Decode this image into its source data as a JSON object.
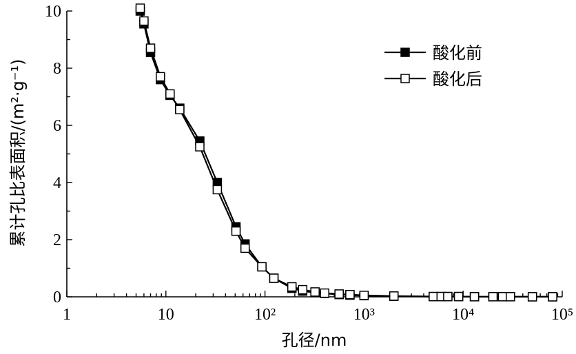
{
  "chart_data": {
    "type": "line",
    "xlabel": "孔径/nm",
    "ylabel": "累计孔比表面积/(m²·g⁻¹)",
    "xscale": "log",
    "xlim": [
      1,
      100000
    ],
    "ylim": [
      0,
      10
    ],
    "x_tick_labels": [
      "1",
      "10",
      "10²",
      "10³",
      "10⁴",
      "10⁵"
    ],
    "y_tick_labels": [
      "0",
      "2",
      "4",
      "6",
      "8",
      "10"
    ],
    "legend_position": "top-right",
    "series": [
      {
        "name": "酸化前",
        "marker": "filled-square",
        "color": "#000000",
        "x": [
          5.5,
          6.0,
          7.0,
          8.8,
          11.0,
          13.8,
          22.0,
          33.0,
          51.0,
          63.0,
          93.0,
          123.0,
          187.0,
          240.0,
          320.0,
          400.0,
          560.0,
          720.0,
          1000.0,
          2000.0,
          5000.0,
          6000.0,
          7000.0,
          9000.0,
          13000.0,
          20000.0,
          25000.0,
          30000.0,
          50000.0,
          80000.0
        ],
        "y": [
          10.0,
          9.55,
          8.55,
          7.6,
          7.05,
          6.6,
          5.45,
          4.0,
          2.45,
          1.85,
          1.05,
          0.65,
          0.3,
          0.2,
          0.15,
          0.12,
          0.08,
          0.06,
          0.04,
          0.02,
          0.01,
          0.01,
          0.01,
          0.01,
          0.005,
          0.005,
          0.005,
          0.005,
          0.003,
          0.002
        ]
      },
      {
        "name": "酸化后",
        "marker": "open-square",
        "color": "#000000",
        "x": [
          5.5,
          6.0,
          7.0,
          8.8,
          11.0,
          13.8,
          22.0,
          33.0,
          51.0,
          63.0,
          93.0,
          123.0,
          187.0,
          240.0,
          320.0,
          400.0,
          560.0,
          720.0,
          1000.0,
          2000.0,
          5000.0,
          6000.0,
          7000.0,
          9000.0,
          13000.0,
          20000.0,
          25000.0,
          30000.0,
          50000.0,
          80000.0
        ],
        "y": [
          10.1,
          9.65,
          8.7,
          7.7,
          7.1,
          6.55,
          5.25,
          3.75,
          2.3,
          1.7,
          1.05,
          0.65,
          0.35,
          0.25,
          0.17,
          0.13,
          0.1,
          0.08,
          0.05,
          0.03,
          0.01,
          0.01,
          0.01,
          0.01,
          0.005,
          0.005,
          0.005,
          0.005,
          0.003,
          0.002
        ]
      }
    ]
  }
}
